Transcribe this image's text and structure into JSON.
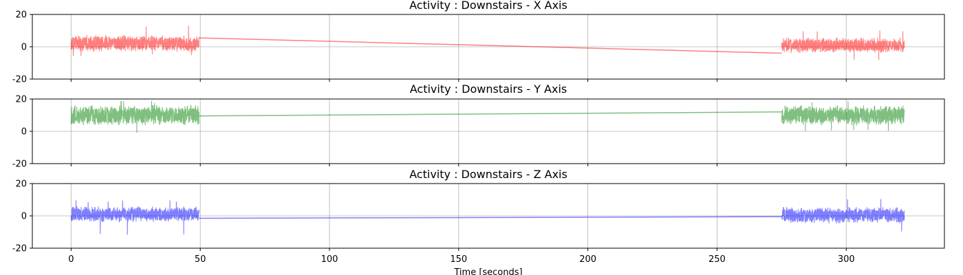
{
  "chart_data": [
    {
      "type": "line",
      "title": "Activity : Downstairs - X Axis",
      "xlabel": "",
      "ylabel": "",
      "xlim": [
        -15,
        338
      ],
      "ylim": [
        -20,
        20
      ],
      "yticks": [
        -20,
        0,
        20
      ],
      "xticks": [
        0,
        50,
        100,
        150,
        200,
        250,
        300
      ],
      "xtick_labels_visible": false,
      "grid": true,
      "series": [
        {
          "color": "#ff0000",
          "alpha": 0.5,
          "segments": [
            {
              "x_start": 0,
              "x_end": 49.5,
              "center": 2,
              "amplitude": 5.5,
              "spike_max": 13.5,
              "spike_min": -6
            },
            {
              "x_start": 275,
              "x_end": 322.5,
              "center": 1,
              "amplitude": 5,
              "spike_max": 10,
              "spike_min": -9
            }
          ],
          "gap_line": {
            "x": [
              49.5,
              275
            ],
            "y": [
              5.5,
              -4
            ]
          }
        }
      ]
    },
    {
      "type": "line",
      "title": "Activity : Downstairs - Y Axis",
      "xlabel": "",
      "ylabel": "",
      "xlim": [
        -15,
        338
      ],
      "ylim": [
        -20,
        20
      ],
      "yticks": [
        -20,
        0,
        20
      ],
      "xticks": [
        0,
        50,
        100,
        150,
        200,
        250,
        300
      ],
      "xtick_labels_visible": false,
      "grid": true,
      "series": [
        {
          "color": "#008000",
          "alpha": 0.5,
          "segments": [
            {
              "x_start": 0,
              "x_end": 49.5,
              "center": 10,
              "amplitude": 6.5,
              "spike_max": 19,
              "spike_min": -2
            },
            {
              "x_start": 275,
              "x_end": 322.5,
              "center": 10,
              "amplitude": 6.5,
              "spike_max": 19,
              "spike_min": 0
            }
          ],
          "gap_line": {
            "x": [
              49.5,
              275
            ],
            "y": [
              9.5,
              12
            ]
          }
        }
      ]
    },
    {
      "type": "line",
      "title": "Activity : Downstairs - Z Axis",
      "xlabel": "Time [seconds]",
      "ylabel": "",
      "xlim": [
        -15,
        338
      ],
      "ylim": [
        -20,
        20
      ],
      "yticks": [
        -20,
        0,
        20
      ],
      "xticks": [
        0,
        50,
        100,
        150,
        200,
        250,
        300
      ],
      "xtick_labels_visible": true,
      "grid": true,
      "series": [
        {
          "color": "#0000ff",
          "alpha": 0.5,
          "segments": [
            {
              "x_start": 0,
              "x_end": 49.5,
              "center": 1,
              "amplitude": 5,
              "spike_max": 10,
              "spike_min": -12.5
            },
            {
              "x_start": 275,
              "x_end": 322.5,
              "center": 0.5,
              "amplitude": 5.5,
              "spike_max": 11.5,
              "spike_min": -10
            }
          ],
          "gap_line": {
            "x": [
              49.5,
              275
            ],
            "y": [
              -1.5,
              -0.5
            ]
          }
        }
      ]
    }
  ]
}
